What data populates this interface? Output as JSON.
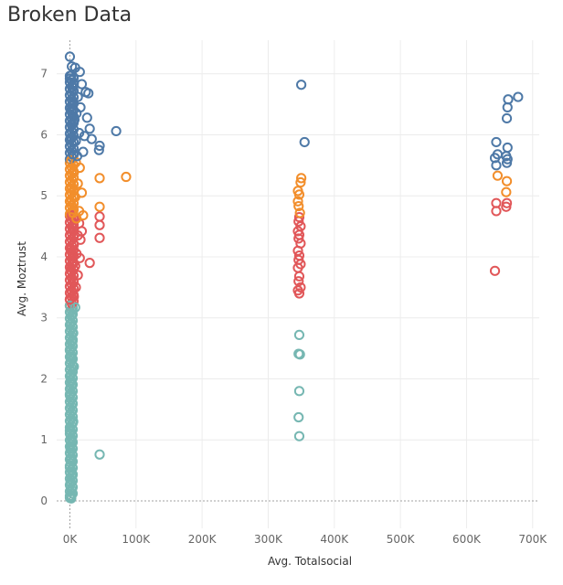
{
  "chart_data": {
    "type": "scatter",
    "title": "Broken Data",
    "xlabel": "Avg. Totalsocial",
    "ylabel": "Avg. Moztrust",
    "xlim": [
      -20000,
      710000
    ],
    "ylim": [
      -0.45,
      7.55
    ],
    "x_ticks": [
      0,
      100000,
      200000,
      300000,
      400000,
      500000,
      600000,
      700000
    ],
    "x_tick_labels": [
      "0K",
      "100K",
      "200K",
      "300K",
      "400K",
      "500K",
      "600K",
      "700K"
    ],
    "y_ticks": [
      0,
      1,
      2,
      3,
      4,
      5,
      6,
      7
    ],
    "y_tick_labels": [
      "0",
      "1",
      "2",
      "3",
      "4",
      "5",
      "6",
      "7"
    ],
    "grid": true,
    "legend": "none",
    "marker": "open-circle",
    "zero_reference_lines": true,
    "colors": {
      "blue": "#4e79a7",
      "orange": "#f28e2b",
      "red": "#e15759",
      "teal": "#76b7b2",
      "grid": "#ececec",
      "zero_line": "#a0a0a0"
    },
    "series": [
      {
        "color": "blue",
        "band_near_zero": {
          "x_max": 8000,
          "y_range": [
            5.6,
            7.0
          ]
        },
        "points": [
          [
            0,
            7.28
          ],
          [
            3000,
            7.12
          ],
          [
            8000,
            7.1
          ],
          [
            15000,
            7.03
          ],
          [
            2000,
            6.97
          ],
          [
            0,
            6.92
          ],
          [
            6000,
            6.85
          ],
          [
            18000,
            6.83
          ],
          [
            5000,
            6.78
          ],
          [
            24000,
            6.7
          ],
          [
            28000,
            6.68
          ],
          [
            12000,
            6.62
          ],
          [
            4000,
            6.55
          ],
          [
            16000,
            6.45
          ],
          [
            2000,
            6.4
          ],
          [
            10000,
            6.35
          ],
          [
            26000,
            6.28
          ],
          [
            7000,
            6.25
          ],
          [
            3000,
            6.18
          ],
          [
            30000,
            6.1
          ],
          [
            70000,
            6.06
          ],
          [
            14000,
            6.03
          ],
          [
            22000,
            5.98
          ],
          [
            1000,
            5.95
          ],
          [
            33000,
            5.93
          ],
          [
            9000,
            5.9
          ],
          [
            45000,
            5.82
          ],
          [
            44000,
            5.75
          ],
          [
            20000,
            5.72
          ],
          [
            5000,
            5.68
          ],
          [
            11000,
            5.65
          ],
          [
            350000,
            6.82
          ],
          [
            355000,
            5.88
          ],
          [
            678000,
            6.62
          ],
          [
            663000,
            6.58
          ],
          [
            662000,
            6.45
          ],
          [
            661000,
            6.27
          ],
          [
            645000,
            5.88
          ],
          [
            662000,
            5.79
          ],
          [
            647000,
            5.68
          ],
          [
            660000,
            5.65
          ],
          [
            643000,
            5.62
          ],
          [
            662000,
            5.6
          ],
          [
            661000,
            5.54
          ],
          [
            645000,
            5.5
          ]
        ]
      },
      {
        "color": "orange",
        "band_near_zero": {
          "x_max": 8000,
          "y_range": [
            4.7,
            5.55
          ]
        },
        "points": [
          [
            2000,
            5.58
          ],
          [
            9000,
            5.55
          ],
          [
            15000,
            5.46
          ],
          [
            6000,
            5.38
          ],
          [
            85000,
            5.31
          ],
          [
            45000,
            5.29
          ],
          [
            12000,
            5.2
          ],
          [
            3000,
            5.12
          ],
          [
            18000,
            5.05
          ],
          [
            8000,
            4.98
          ],
          [
            1000,
            4.9
          ],
          [
            45000,
            4.82
          ],
          [
            14000,
            4.75
          ],
          [
            5000,
            4.72
          ],
          [
            20000,
            4.68
          ],
          [
            10000,
            4.63
          ],
          [
            350000,
            5.29
          ],
          [
            349000,
            5.22
          ],
          [
            345000,
            5.08
          ],
          [
            347000,
            5.02
          ],
          [
            345000,
            4.91
          ],
          [
            346000,
            4.83
          ],
          [
            348000,
            4.72
          ],
          [
            647000,
            5.33
          ],
          [
            661000,
            5.24
          ],
          [
            660000,
            5.06
          ]
        ]
      },
      {
        "color": "red",
        "band_near_zero": {
          "x_max": 8000,
          "y_range": [
            3.2,
            4.7
          ]
        },
        "points": [
          [
            3000,
            4.68
          ],
          [
            8000,
            4.62
          ],
          [
            45000,
            4.66
          ],
          [
            14000,
            4.55
          ],
          [
            45000,
            4.52
          ],
          [
            5000,
            4.48
          ],
          [
            18000,
            4.42
          ],
          [
            45000,
            4.31
          ],
          [
            12000,
            4.35
          ],
          [
            16000,
            4.28
          ],
          [
            6000,
            4.2
          ],
          [
            2000,
            4.12
          ],
          [
            10000,
            4.05
          ],
          [
            15000,
            3.98
          ],
          [
            4000,
            3.92
          ],
          [
            30000,
            3.9
          ],
          [
            8000,
            3.85
          ],
          [
            1000,
            3.78
          ],
          [
            12000,
            3.7
          ],
          [
            5000,
            3.6
          ],
          [
            9000,
            3.5
          ],
          [
            3000,
            3.42
          ],
          [
            6000,
            3.35
          ],
          [
            0,
            3.3
          ],
          [
            347000,
            4.65
          ],
          [
            346000,
            4.58
          ],
          [
            349000,
            4.5
          ],
          [
            345000,
            4.42
          ],
          [
            347000,
            4.36
          ],
          [
            346000,
            4.3
          ],
          [
            349000,
            4.22
          ],
          [
            345000,
            4.1
          ],
          [
            347000,
            4.02
          ],
          [
            346000,
            3.95
          ],
          [
            349000,
            3.88
          ],
          [
            345000,
            3.82
          ],
          [
            347000,
            3.68
          ],
          [
            346000,
            3.6
          ],
          [
            349000,
            3.5
          ],
          [
            345000,
            3.45
          ],
          [
            347000,
            3.4
          ],
          [
            645000,
            4.88
          ],
          [
            661000,
            4.88
          ],
          [
            660000,
            4.82
          ],
          [
            645000,
            4.75
          ],
          [
            643000,
            3.77
          ]
        ]
      },
      {
        "color": "teal",
        "band_near_zero": {
          "x_max": 6000,
          "y_range": [
            0.05,
            3.2
          ]
        },
        "points": [
          [
            0,
            3.2
          ],
          [
            8000,
            3.17
          ],
          [
            3000,
            3.05
          ],
          [
            1000,
            2.9
          ],
          [
            5000,
            2.75
          ],
          [
            4000,
            2.62
          ],
          [
            0,
            2.48
          ],
          [
            2000,
            2.35
          ],
          [
            6000,
            2.2
          ],
          [
            1000,
            2.05
          ],
          [
            3000,
            1.92
          ],
          [
            0,
            1.75
          ],
          [
            4000,
            1.6
          ],
          [
            2000,
            1.45
          ],
          [
            5000,
            1.3
          ],
          [
            0,
            1.15
          ],
          [
            3000,
            1.0
          ],
          [
            1000,
            0.85
          ],
          [
            45000,
            0.76
          ],
          [
            2000,
            0.68
          ],
          [
            0,
            0.55
          ],
          [
            4000,
            0.42
          ],
          [
            1000,
            0.3
          ],
          [
            3000,
            0.18
          ],
          [
            0,
            0.08
          ],
          [
            2000,
            0.04
          ],
          [
            347000,
            2.72
          ],
          [
            346000,
            2.41
          ],
          [
            348000,
            2.4
          ],
          [
            347000,
            1.8
          ],
          [
            346000,
            1.37
          ],
          [
            347000,
            1.06
          ]
        ]
      }
    ]
  }
}
